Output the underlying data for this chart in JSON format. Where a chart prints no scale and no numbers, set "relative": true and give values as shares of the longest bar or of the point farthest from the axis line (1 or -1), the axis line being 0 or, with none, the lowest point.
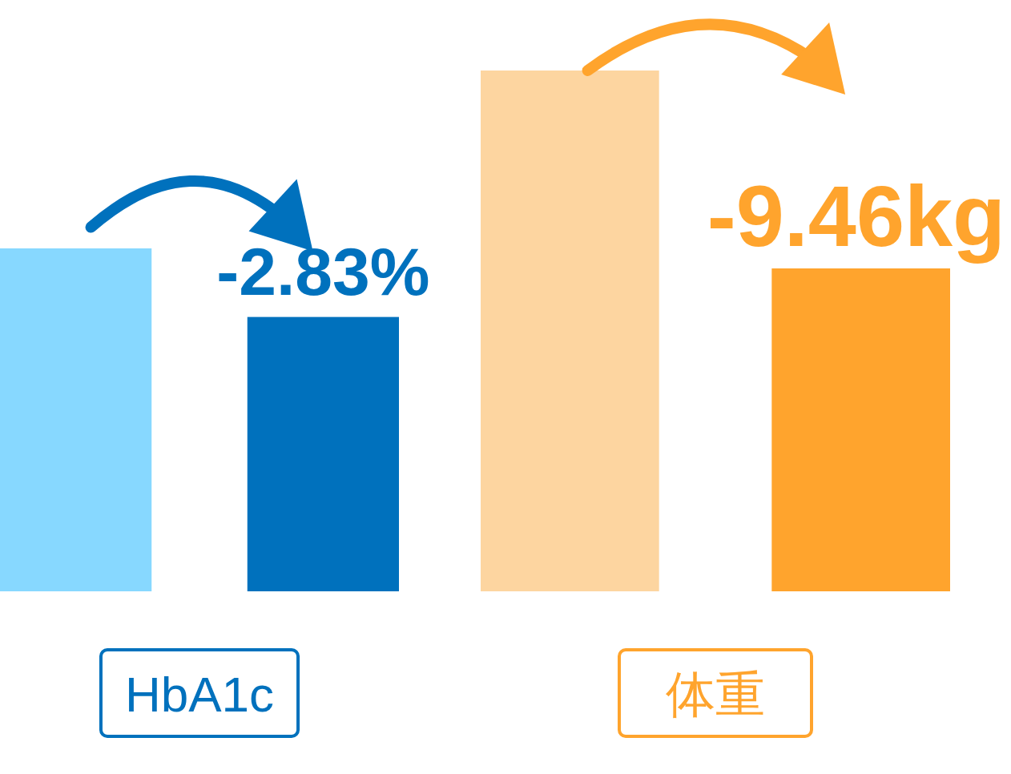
{
  "chart_data": [
    {
      "type": "bar",
      "relative": true,
      "categories": [
        null,
        null
      ],
      "values": [
        1,
        0.8
      ],
      "colors": [
        "#87d8ff",
        "#0071bd"
      ],
      "xlabel": "HbA1c",
      "annotations": [
        "-2.83%"
      ]
    },
    {
      "type": "bar",
      "relative": true,
      "categories": [
        null,
        null
      ],
      "values": [
        1,
        0.62
      ],
      "colors": [
        "#fdd5a0",
        "#ffa42d"
      ],
      "xlabel": "体重",
      "annotations": [
        "-9.46kg"
      ]
    }
  ]
}
